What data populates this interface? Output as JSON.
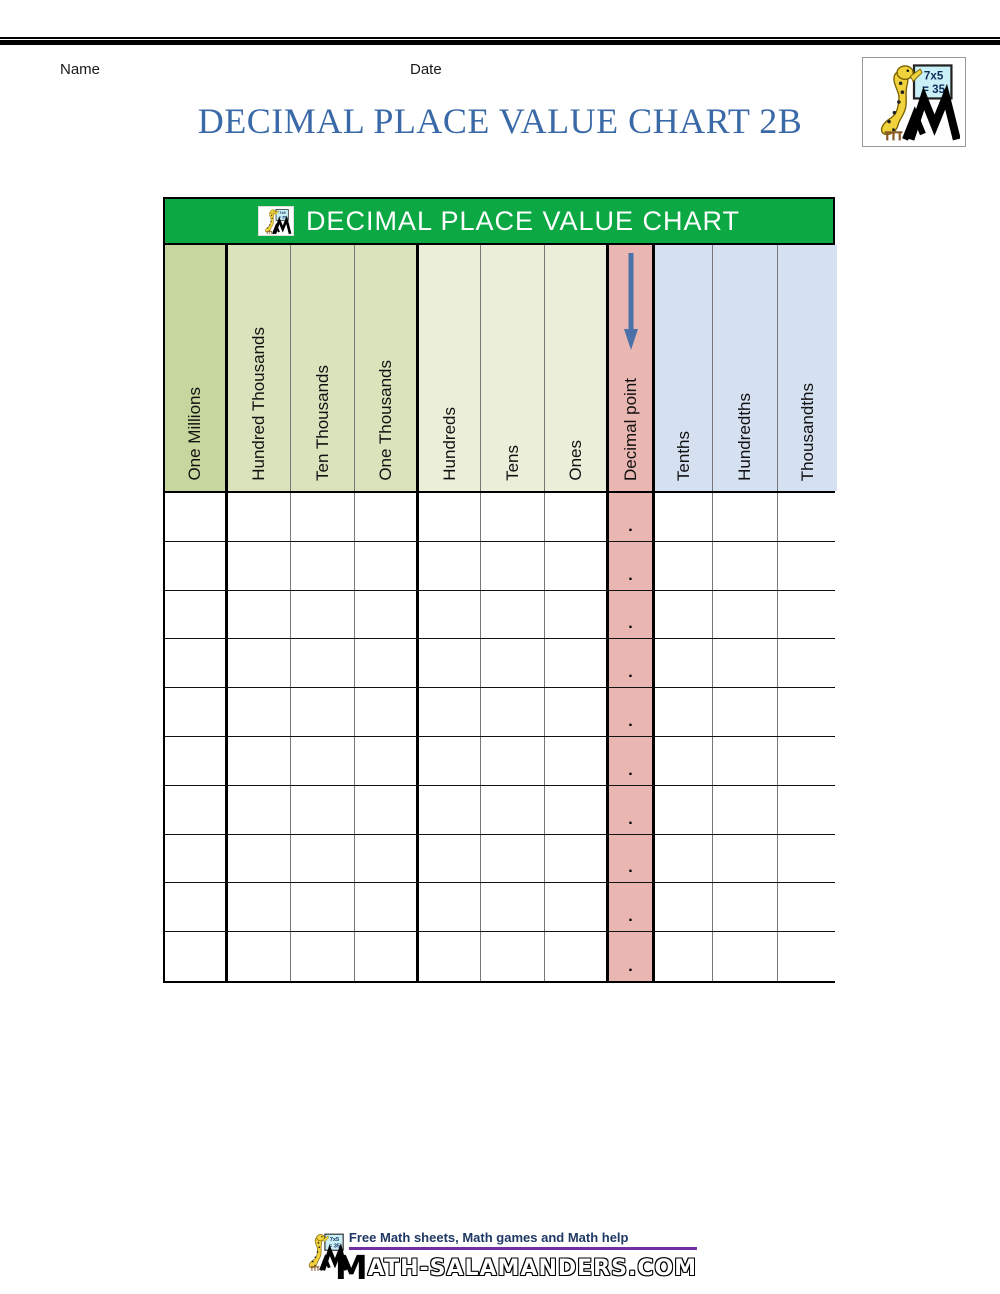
{
  "page": {
    "name_label": "Name",
    "date_label": "Date",
    "title": "DECIMAL PLACE VALUE CHART 2B"
  },
  "logo": {
    "board_line1": "7x5",
    "board_line2": "= 35"
  },
  "chart": {
    "header_title": "DECIMAL PLACE VALUE CHART",
    "columns": [
      {
        "label": "One Millions",
        "bg": "#C6D69E"
      },
      {
        "label": "Hundred Thousands",
        "bg": "#DAE3BC"
      },
      {
        "label": "Ten Thousands",
        "bg": "#DAE3BC"
      },
      {
        "label": "One Thousands",
        "bg": "#DAE3BC"
      },
      {
        "label": "Hundreds",
        "bg": "#EBEFD9"
      },
      {
        "label": "Tens",
        "bg": "#EBEFD9"
      },
      {
        "label": "Ones",
        "bg": "#EBEFD9"
      },
      {
        "label": "Decimal point",
        "bg": "#EAB6B1"
      },
      {
        "label": "Tenths",
        "bg": "#D5E0F0"
      },
      {
        "label": "Hundredths",
        "bg": "#D5E0F0"
      },
      {
        "label": "Thousandths",
        "bg": "#D5E0F0"
      }
    ],
    "rows": 10,
    "decimal_symbol": "."
  },
  "footer": {
    "tagline": "Free Math sheets, Math games and Math help",
    "site_lead": "M",
    "site_rest": "ATH-SALAMANDERS.COM"
  },
  "colors": {
    "header_green": "#0CA843",
    "title_blue": "#3A69A8",
    "decimal_bg": "#EAB6B1",
    "arrow_blue": "#4A72A8",
    "tagline_navy": "#1F3864",
    "underline_purple": "#7030A0"
  }
}
